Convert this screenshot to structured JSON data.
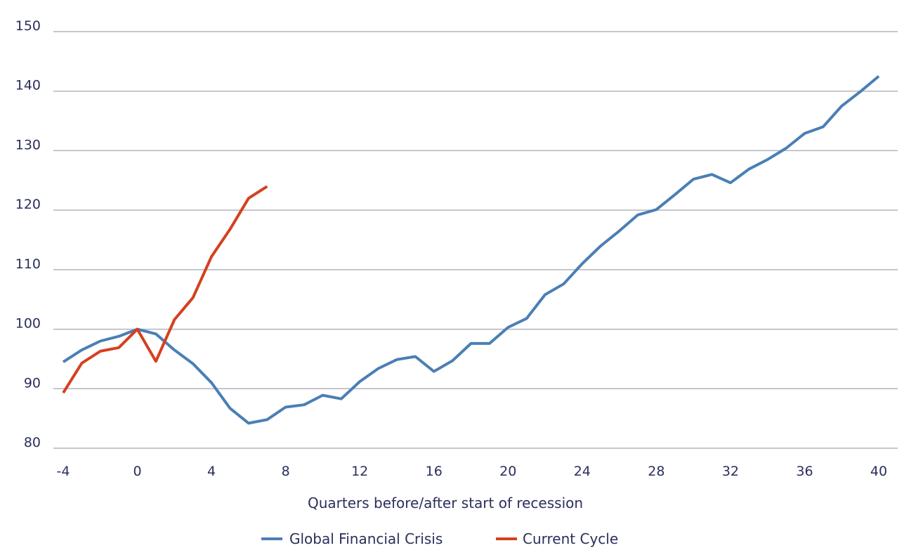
{
  "chart_data": {
    "type": "line",
    "title": "",
    "xlabel": "Quarters before/after start of recession",
    "ylabel": "",
    "xlim": [
      -4,
      40
    ],
    "ylim": [
      80,
      150
    ],
    "x_ticks": [
      -4,
      0,
      4,
      8,
      12,
      16,
      20,
      24,
      28,
      32,
      36,
      40
    ],
    "y_ticks": [
      80,
      90,
      100,
      110,
      120,
      130,
      140,
      150
    ],
    "grid": "horizontal",
    "legend_position": "bottom",
    "series": [
      {
        "name": "Global Financial Crisis",
        "color": "#4a7fb5",
        "x": [
          -4,
          -3,
          -2,
          -1,
          0,
          1,
          2,
          3,
          4,
          5,
          6,
          7,
          8,
          9,
          10,
          11,
          12,
          13,
          14,
          15,
          16,
          17,
          18,
          19,
          20,
          21,
          22,
          23,
          24,
          25,
          26,
          27,
          28,
          29,
          30,
          31,
          32,
          33,
          34,
          35,
          36,
          37,
          38,
          39,
          40
        ],
        "y": [
          94.5,
          96.5,
          98.0,
          98.8,
          100.0,
          99.2,
          96.5,
          94.2,
          91.0,
          86.7,
          84.2,
          84.8,
          86.9,
          87.3,
          88.9,
          88.3,
          91.2,
          93.4,
          94.9,
          95.4,
          92.9,
          94.7,
          97.6,
          97.6,
          100.3,
          101.8,
          105.8,
          107.6,
          111.0,
          114.0,
          116.5,
          119.2,
          120.1,
          122.6,
          125.2,
          126.0,
          124.6,
          126.9,
          128.5,
          130.4,
          132.9,
          134.0,
          137.5,
          139.9,
          142.5
        ]
      },
      {
        "name": "Current Cycle",
        "color": "#d5401f",
        "x": [
          -4,
          -3,
          -2,
          -1,
          0,
          1,
          2,
          3,
          4,
          5,
          6,
          7
        ],
        "y": [
          89.3,
          94.3,
          96.3,
          96.9,
          100.0,
          94.6,
          101.6,
          105.3,
          112.2,
          116.8,
          122.0,
          124.0
        ]
      }
    ]
  }
}
